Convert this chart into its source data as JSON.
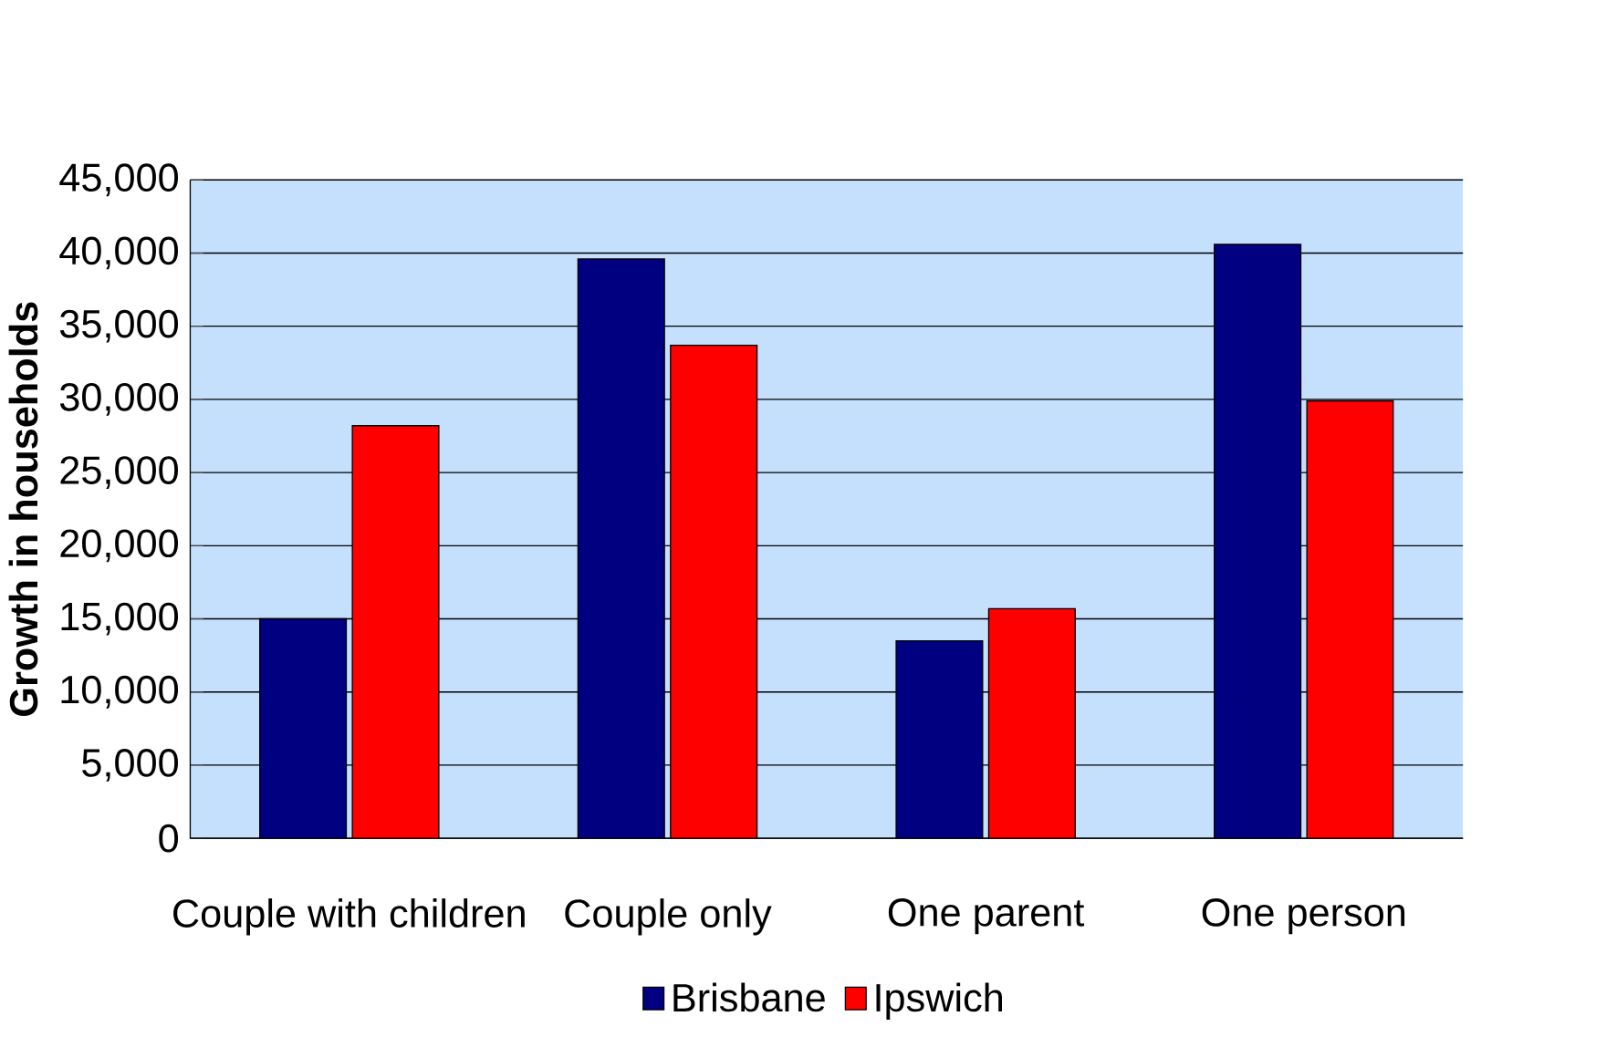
{
  "chart_data": {
    "type": "bar",
    "ylabel": "Growth in households",
    "categories": [
      "Couple with children",
      "Couple only",
      "One parent",
      "One person"
    ],
    "series": [
      {
        "name": "Brisbane",
        "color": "#000080",
        "values": [
          15000,
          39600,
          13500,
          40600
        ]
      },
      {
        "name": "Ipswich",
        "color": "#ff0000",
        "values": [
          28200,
          33700,
          15700,
          29900
        ]
      }
    ],
    "ylim": [
      0,
      45000
    ],
    "yticks": [
      0,
      {
        "value": 5000,
        "label": "5,000"
      },
      {
        "value": 10000,
        "label": "10,000"
      },
      {
        "value": 15000,
        "label": "15,000"
      },
      {
        "value": 20000,
        "label": "20,000"
      },
      {
        "value": 25000,
        "label": "25,000"
      },
      {
        "value": 30000,
        "label": "30,000"
      },
      {
        "value": 35000,
        "label": "35,000"
      },
      {
        "value": 40000,
        "label": "40,000"
      },
      {
        "value": 45000,
        "label": "45,000"
      }
    ],
    "grid": "y",
    "legend": "bottom"
  }
}
